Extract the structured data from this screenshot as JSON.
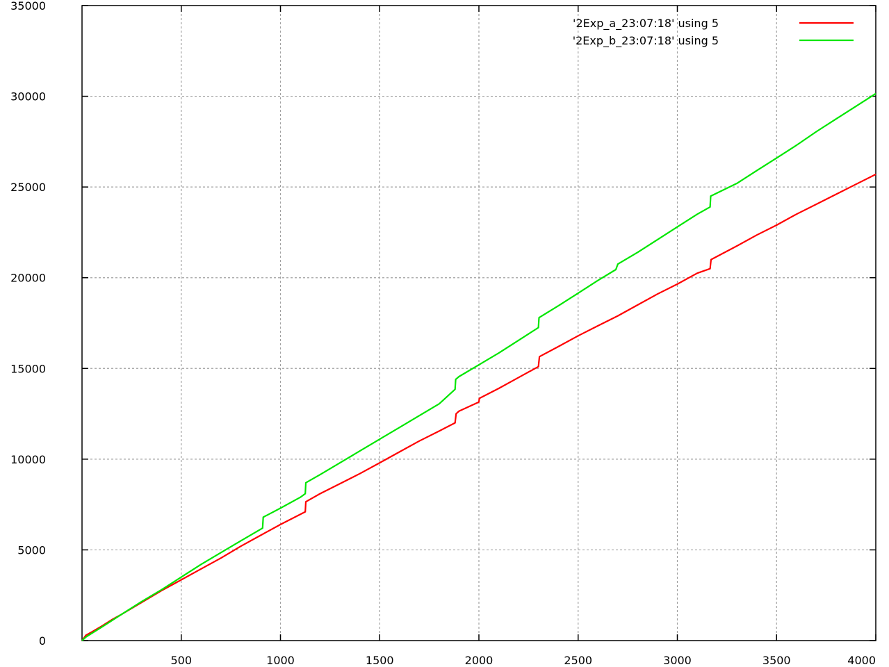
{
  "chart_data": {
    "type": "line",
    "title": "",
    "xlabel": "",
    "ylabel": "",
    "xlim": [
      0,
      4000
    ],
    "ylim": [
      0,
      35000
    ],
    "x_ticks": [
      "500",
      "1000",
      "1500",
      "2000",
      "2500",
      "3000",
      "3500",
      "4000"
    ],
    "y_ticks": [
      "0",
      "5000",
      "10000",
      "15000",
      "20000",
      "25000",
      "30000",
      "35000"
    ],
    "grid": true,
    "legend_position": "top-right",
    "series": [
      {
        "name": "'2Exp_a_23:07:18' using 5",
        "color": "#ff0000",
        "points": [
          [
            0,
            0
          ],
          [
            20,
            300
          ],
          [
            50,
            480
          ],
          [
            100,
            800
          ],
          [
            150,
            1150
          ],
          [
            200,
            1450
          ],
          [
            300,
            2100
          ],
          [
            400,
            2750
          ],
          [
            500,
            3350
          ],
          [
            600,
            3950
          ],
          [
            700,
            4550
          ],
          [
            800,
            5200
          ],
          [
            900,
            5800
          ],
          [
            1000,
            6400
          ],
          [
            1125,
            7100
          ],
          [
            1128,
            7650
          ],
          [
            1200,
            8100
          ],
          [
            1300,
            8650
          ],
          [
            1400,
            9200
          ],
          [
            1500,
            9800
          ],
          [
            1600,
            10400
          ],
          [
            1700,
            11000
          ],
          [
            1800,
            11550
          ],
          [
            1880,
            12000
          ],
          [
            1885,
            12500
          ],
          [
            1900,
            12650
          ],
          [
            2000,
            13150
          ],
          [
            2002,
            13350
          ],
          [
            2100,
            13900
          ],
          [
            2200,
            14500
          ],
          [
            2300,
            15100
          ],
          [
            2305,
            15650
          ],
          [
            2400,
            16200
          ],
          [
            2500,
            16800
          ],
          [
            2600,
            17350
          ],
          [
            2700,
            17900
          ],
          [
            2800,
            18500
          ],
          [
            2900,
            19100
          ],
          [
            3000,
            19650
          ],
          [
            3100,
            20250
          ],
          [
            3165,
            20500
          ],
          [
            3170,
            21000
          ],
          [
            3300,
            21750
          ],
          [
            3400,
            22350
          ],
          [
            3500,
            22900
          ],
          [
            3600,
            23500
          ],
          [
            3700,
            24050
          ],
          [
            3800,
            24600
          ],
          [
            3900,
            25150
          ],
          [
            4000,
            25700
          ]
        ]
      },
      {
        "name": "'2Exp_b_23:07:18' using 5",
        "color": "#00e600",
        "points": [
          [
            0,
            0
          ],
          [
            20,
            200
          ],
          [
            100,
            750
          ],
          [
            200,
            1450
          ],
          [
            300,
            2150
          ],
          [
            400,
            2800
          ],
          [
            500,
            3500
          ],
          [
            600,
            4200
          ],
          [
            700,
            4850
          ],
          [
            800,
            5500
          ],
          [
            910,
            6200
          ],
          [
            913,
            6800
          ],
          [
            1000,
            7300
          ],
          [
            1100,
            7900
          ],
          [
            1125,
            8100
          ],
          [
            1128,
            8700
          ],
          [
            1200,
            9150
          ],
          [
            1300,
            9800
          ],
          [
            1400,
            10450
          ],
          [
            1500,
            11100
          ],
          [
            1600,
            11750
          ],
          [
            1700,
            12400
          ],
          [
            1800,
            13050
          ],
          [
            1880,
            13850
          ],
          [
            1883,
            14400
          ],
          [
            1900,
            14550
          ],
          [
            2000,
            15200
          ],
          [
            2100,
            15850
          ],
          [
            2200,
            16550
          ],
          [
            2300,
            17250
          ],
          [
            2303,
            17800
          ],
          [
            2400,
            18450
          ],
          [
            2500,
            19150
          ],
          [
            2600,
            19850
          ],
          [
            2690,
            20450
          ],
          [
            2700,
            20750
          ],
          [
            2800,
            21400
          ],
          [
            2900,
            22100
          ],
          [
            3000,
            22800
          ],
          [
            3100,
            23500
          ],
          [
            3165,
            23900
          ],
          [
            3168,
            24500
          ],
          [
            3300,
            25200
          ],
          [
            3400,
            25900
          ],
          [
            3500,
            26600
          ],
          [
            3600,
            27300
          ],
          [
            3700,
            28050
          ],
          [
            3800,
            28750
          ],
          [
            3900,
            29450
          ],
          [
            4000,
            30150
          ]
        ]
      }
    ]
  }
}
